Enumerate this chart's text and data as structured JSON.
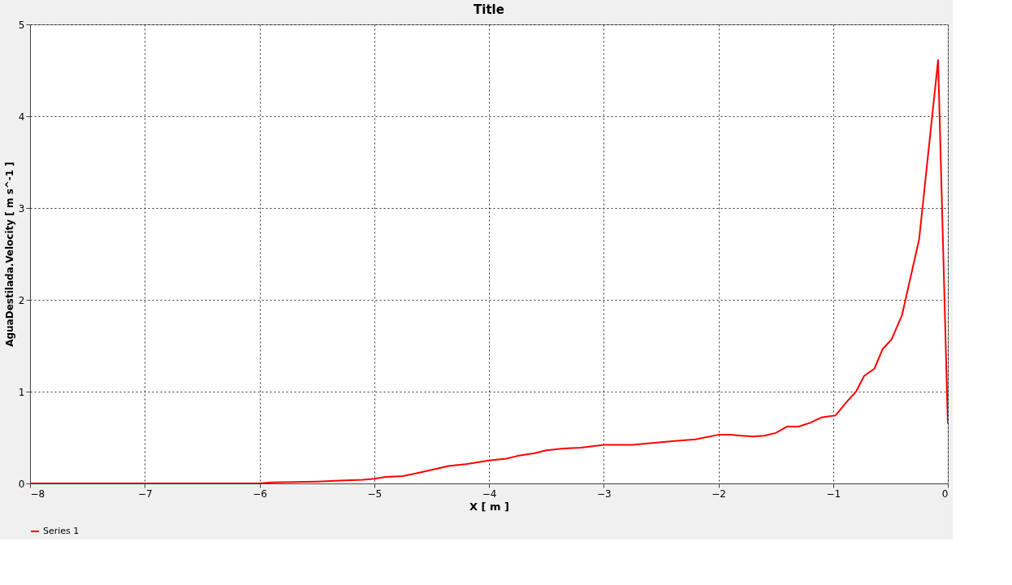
{
  "chart_data": {
    "type": "line",
    "title": "Title",
    "xlabel": "X [ m ]",
    "ylabel": "AguaDestilada.Velocity [ m s^-1 ]",
    "xlim": [
      -8,
      0
    ],
    "xticks": [
      -8,
      -7,
      -6,
      -5,
      -4,
      -3,
      -2,
      -1,
      0
    ],
    "ylim": [
      0,
      5
    ],
    "yticks": [
      0,
      1,
      2,
      3,
      4,
      5
    ],
    "grid": true,
    "legend": "bottom",
    "marker": "none",
    "line_style": "solid",
    "series": [
      {
        "name": "Series 1",
        "color": "#ff0000",
        "x": [
          -8,
          -7,
          -6,
          -5.9,
          -5.5,
          -5.3,
          -5.1,
          -5.0,
          -4.9,
          -4.75,
          -4.6,
          -4.35,
          -4.2,
          -4.0,
          -3.85,
          -3.75,
          -3.6,
          -3.5,
          -3.35,
          -3.2,
          -3.0,
          -2.75,
          -2.5,
          -2.4,
          -2.2,
          -2.0,
          -1.9,
          -1.8,
          -1.7,
          -1.6,
          -1.5,
          -1.4,
          -1.3,
          -1.2,
          -1.1,
          -0.98,
          -0.88,
          -0.8,
          -0.73,
          -0.64,
          -0.57,
          -0.49,
          -0.4,
          -0.25,
          -0.085,
          0
        ],
        "values": [
          0,
          0,
          0,
          0.01,
          0.02,
          0.03,
          0.04,
          0.05,
          0.07,
          0.08,
          0.12,
          0.19,
          0.21,
          0.25,
          0.27,
          0.3,
          0.33,
          0.36,
          0.38,
          0.39,
          0.42,
          0.42,
          0.45,
          0.46,
          0.48,
          0.53,
          0.53,
          0.52,
          0.51,
          0.52,
          0.55,
          0.62,
          0.62,
          0.66,
          0.72,
          0.74,
          0.89,
          1.0,
          1.17,
          1.25,
          1.46,
          1.57,
          1.83,
          2.66,
          4.61,
          0.65
        ]
      }
    ]
  }
}
